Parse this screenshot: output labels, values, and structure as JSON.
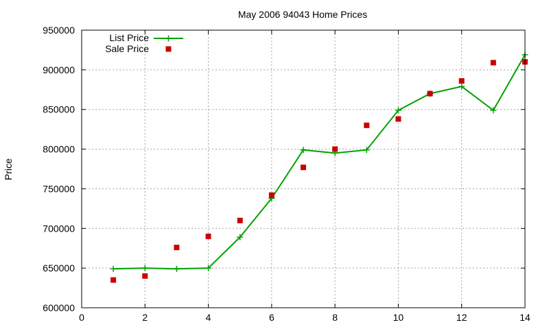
{
  "chart_data": {
    "type": "scatter",
    "title": "May 2006 94043 Home Prices",
    "xlabel": "",
    "ylabel": "Price",
    "xlim": [
      0,
      14
    ],
    "ylim": [
      600000,
      950000
    ],
    "x_ticks": [
      "0",
      "2",
      "4",
      "6",
      "8",
      "10",
      "12",
      "14"
    ],
    "y_ticks": [
      "600000",
      "650000",
      "700000",
      "750000",
      "800000",
      "850000",
      "900000",
      "950000"
    ],
    "grid": true,
    "legend_position": "top-left",
    "series": [
      {
        "name": "List Price",
        "style": "line with plus markers",
        "color": "#00a000",
        "points": [
          {
            "x": 1,
            "y": 649000
          },
          {
            "x": 2,
            "y": 650000
          },
          {
            "x": 3,
            "y": 649000
          },
          {
            "x": 4,
            "y": 650000
          },
          {
            "x": 5,
            "y": 689000
          },
          {
            "x": 6,
            "y": 738000
          },
          {
            "x": 7,
            "y": 799000
          },
          {
            "x": 8,
            "y": 795000
          },
          {
            "x": 9,
            "y": 799000
          },
          {
            "x": 10,
            "y": 849000
          },
          {
            "x": 11,
            "y": 870000
          },
          {
            "x": 12,
            "y": 879000
          },
          {
            "x": 13,
            "y": 849000
          },
          {
            "x": 14,
            "y": 919000
          }
        ]
      },
      {
        "name": "Sale Price",
        "style": "square markers",
        "color": "#cc0000",
        "points": [
          {
            "x": 1,
            "y": 635000
          },
          {
            "x": 2,
            "y": 640000
          },
          {
            "x": 3,
            "y": 676000
          },
          {
            "x": 4,
            "y": 690000
          },
          {
            "x": 5,
            "y": 710000
          },
          {
            "x": 6,
            "y": 742000
          },
          {
            "x": 7,
            "y": 777000
          },
          {
            "x": 8,
            "y": 800000
          },
          {
            "x": 9,
            "y": 830000
          },
          {
            "x": 10,
            "y": 838000
          },
          {
            "x": 11,
            "y": 870000
          },
          {
            "x": 12,
            "y": 886000
          },
          {
            "x": 13,
            "y": 909000
          },
          {
            "x": 14,
            "y": 910000
          }
        ]
      }
    ]
  }
}
